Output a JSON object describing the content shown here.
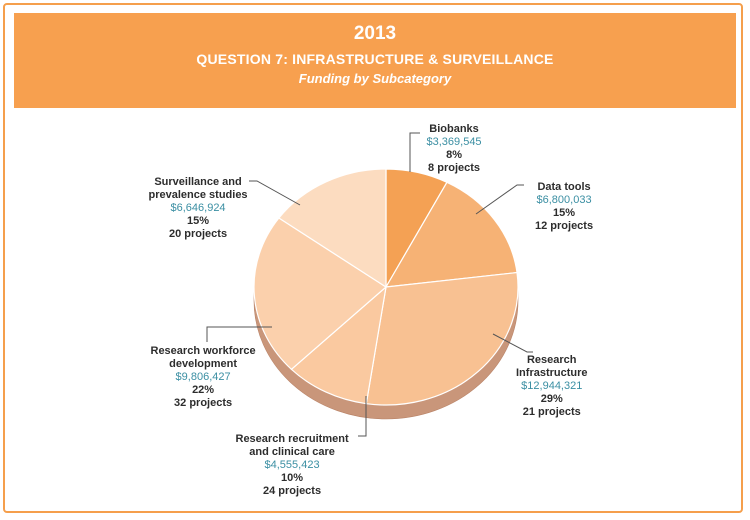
{
  "header": {
    "year": "2013",
    "question": "QUESTION 7: INFRASTRUCTURE & SURVEILLANCE",
    "subtitle": "Funding by Subcategory"
  },
  "colors": {
    "banner": "#f7a04f",
    "border": "#f59f4c",
    "money_text": "#3b8fa3",
    "side_shadow": "#c9967a"
  },
  "chart_data": {
    "type": "pie",
    "title": "Funding by Subcategory",
    "start": "12 o'clock, clockwise",
    "slices": [
      {
        "name": "Biobanks",
        "name_lines": [
          "Biobanks"
        ],
        "amount": "$3,369,545",
        "value": 3369545,
        "percent": "8%",
        "projects": "8 projects",
        "color": "#f4a154"
      },
      {
        "name": "Data tools",
        "name_lines": [
          "Data tools"
        ],
        "amount": "$6,800,033",
        "value": 6800033,
        "percent": "15%",
        "projects": "12 projects",
        "color": "#f6b275"
      },
      {
        "name": "Research Infrastructure",
        "name_lines": [
          "Research",
          "Infrastructure"
        ],
        "amount": "$12,944,321",
        "value": 12944321,
        "percent": "29%",
        "projects": "21 projects",
        "color": "#f8c192"
      },
      {
        "name": "Research recruitment and clinical care",
        "name_lines": [
          "Research recruitment",
          "and clinical care"
        ],
        "amount": "$4,555,423",
        "value": 4555423,
        "percent": "10%",
        "projects": "24 projects",
        "color": "#fac9a0"
      },
      {
        "name": "Research workforce development",
        "name_lines": [
          "Research workforce",
          "development"
        ],
        "amount": "$9,806,427",
        "value": 9806427,
        "percent": "22%",
        "projects": "32 projects",
        "color": "#fbd0ac"
      },
      {
        "name": "Surveillance and prevalence studies",
        "name_lines": [
          "Surveillance and",
          "prevalence studies"
        ],
        "amount": "$6,646,924",
        "value": 6646924,
        "percent": "15%",
        "projects": "20 projects",
        "color": "#fcdcc0"
      }
    ]
  }
}
